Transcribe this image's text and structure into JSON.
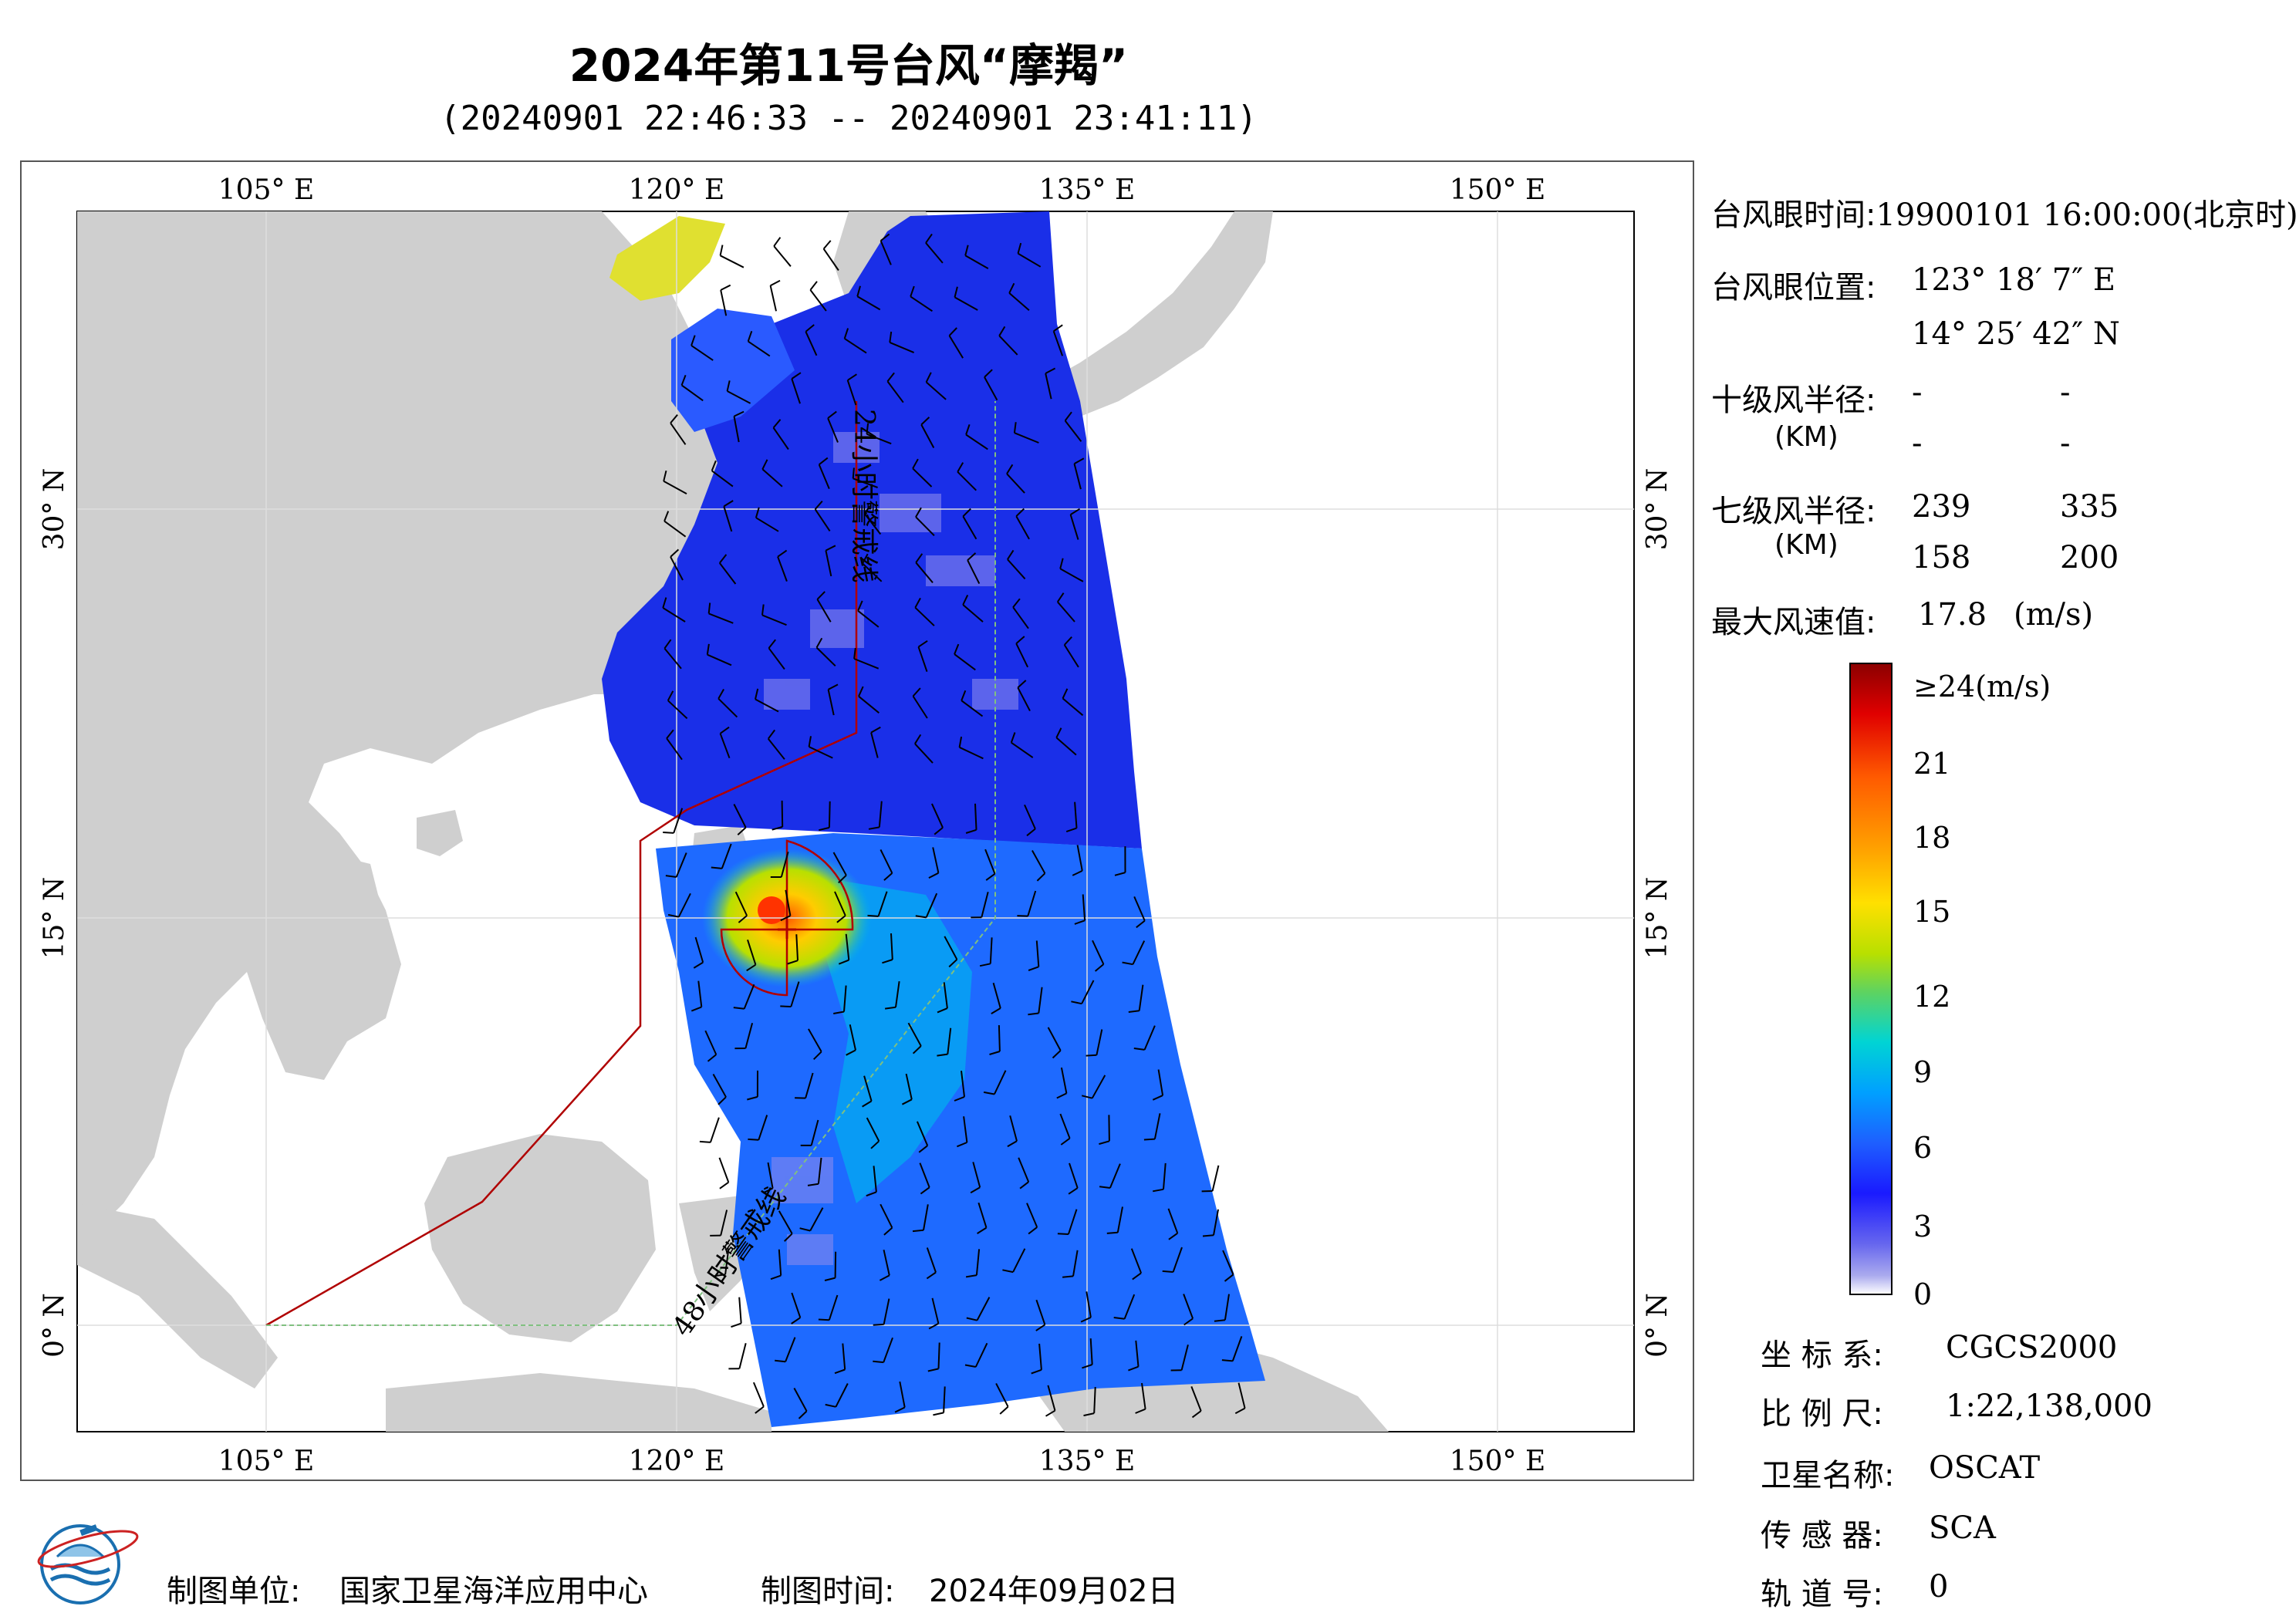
{
  "title": "2024年第11号台风“摩羯”",
  "subtitle": "(20240901 22:46:33 -- 20240901 23:41:11)",
  "map": {
    "lon_labels_top": [
      "105° E",
      "120° E",
      "135° E",
      "150° E"
    ],
    "lon_labels_bottom": [
      "105° E",
      "120° E",
      "135° E",
      "150° E"
    ],
    "lat_labels_left": [
      "30° N",
      "15° N",
      "0° N"
    ],
    "lat_labels_right": [
      "30° N",
      "15° N",
      "0° N"
    ],
    "track_label_1": "48小时警戒线",
    "track_label_2": "24小时警戒线",
    "colors": {
      "land": "#cfcfcf",
      "ocean": "#ffffff",
      "low_wind": "#2233dd",
      "mid_wind": "#1e90ff",
      "high_wind": "#ffcc00",
      "max_wind": "#ff3300",
      "warning_line": "#b00000",
      "barb": "#000000"
    }
  },
  "info": {
    "eye_time_label": "台风眼时间:",
    "eye_time_value": "19900101 16:00:00(北京时)",
    "eye_pos_label": "台风眼位置:",
    "eye_lon": "123° 18′ 7″ E",
    "eye_lat": "14° 25′ 42″ N",
    "r10_label": "十级风半径:",
    "r10_unit": "(KM)",
    "r10_values": [
      "-",
      "-",
      "-",
      "-"
    ],
    "r7_label": "七级风半径:",
    "r7_unit": "(KM)",
    "r7_values": [
      "239",
      "335",
      "158",
      "200"
    ],
    "max_wind_label": "最大风速值:",
    "max_wind_value": "17.8",
    "max_wind_unit": "(m/s)"
  },
  "colorbar": {
    "labels": [
      "≥24(m/s)",
      "21",
      "18",
      "15",
      "12",
      "9",
      "6",
      "3",
      "0"
    ],
    "stops": [
      "#8b0000",
      "#e00000",
      "#ff5a00",
      "#ffa500",
      "#ffe000",
      "#b8e000",
      "#5fd35f",
      "#00d4d4",
      "#00a0ff",
      "#1e5fff",
      "#1a1aff",
      "#6666ee",
      "#aaaaee",
      "#ffffff"
    ]
  },
  "meta": {
    "crs_label": "坐 标 系:",
    "crs_value": "CGCS2000",
    "scale_label": "比 例 尺:",
    "scale_value": "1:22,138,000",
    "sat_label": "卫星名称:",
    "sat_value": "OSCAT",
    "sensor_label": "传 感 器:",
    "sensor_value": "SCA",
    "orbit_label": "轨 道 号:",
    "orbit_value": "0"
  },
  "footer": {
    "producer_label": "制图单位:",
    "producer_value": "国家卫星海洋应用中心",
    "date_label": "制图时间:",
    "date_value": "2024年09月02日"
  }
}
